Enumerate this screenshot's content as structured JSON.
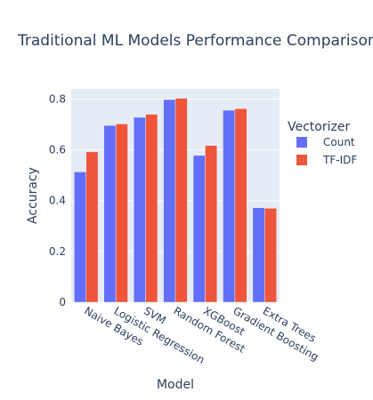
{
  "chart_data": {
    "type": "bar",
    "title": "Traditional ML Models Performance Comparison",
    "xlabel": "Model",
    "ylabel": "Accuracy",
    "categories": [
      "Naive Bayes",
      "Logistic Regression",
      "SVM",
      "Random Forest",
      "XGBoost",
      "Gradient Boosting",
      "Extra Trees"
    ],
    "series": [
      {
        "name": "Count",
        "color": "#636efa",
        "values": [
          0.513,
          0.696,
          0.728,
          0.798,
          0.578,
          0.756,
          0.372
        ]
      },
      {
        "name": "TF-IDF",
        "color": "#ef553b",
        "values": [
          0.592,
          0.702,
          0.74,
          0.803,
          0.617,
          0.762,
          0.37
        ]
      }
    ],
    "ylim": [
      0,
      0.84
    ],
    "yticks": [
      0,
      0.2,
      0.4,
      0.6,
      0.8
    ],
    "ytick_labels": [
      "0",
      "0.2",
      "0.4",
      "0.6",
      "0.8"
    ],
    "legend": {
      "title": "Vectorizer",
      "placement": "right"
    },
    "grid": true,
    "plot_background": "#e5ecf6"
  }
}
